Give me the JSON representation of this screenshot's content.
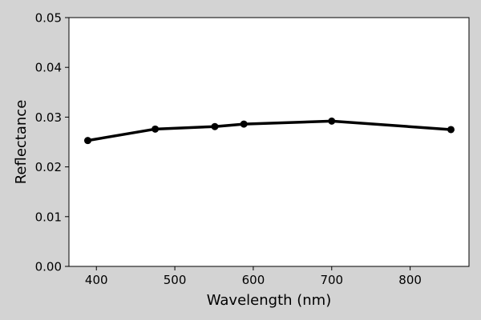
{
  "chart_data": {
    "type": "line",
    "title": "",
    "xlabel": "Wavelength (nm)",
    "ylabel": "Reflectance",
    "x_ticks": [
      400,
      500,
      600,
      700,
      800
    ],
    "y_ticks": [
      0.0,
      0.01,
      0.02,
      0.03,
      0.04,
      0.05
    ],
    "x_tick_labels": [
      "400",
      "500",
      "600",
      "700",
      "800"
    ],
    "y_tick_labels": [
      "0.00",
      "0.01",
      "0.02",
      "0.03",
      "0.04",
      "0.05"
    ],
    "xlim": [
      365,
      875
    ],
    "ylim": [
      0,
      0.05
    ],
    "grid": false,
    "legend": "none",
    "series": [
      {
        "x": [
          389,
          475,
          551,
          588,
          700,
          852
        ],
        "y": [
          0.0253,
          0.0276,
          0.0281,
          0.0286,
          0.0292,
          0.0275
        ],
        "color": "#000000",
        "marker": "circle"
      }
    ]
  },
  "colors": {
    "figure_background": "#d3d3d3",
    "plot_background": "#ffffff",
    "line": "#000000"
  }
}
